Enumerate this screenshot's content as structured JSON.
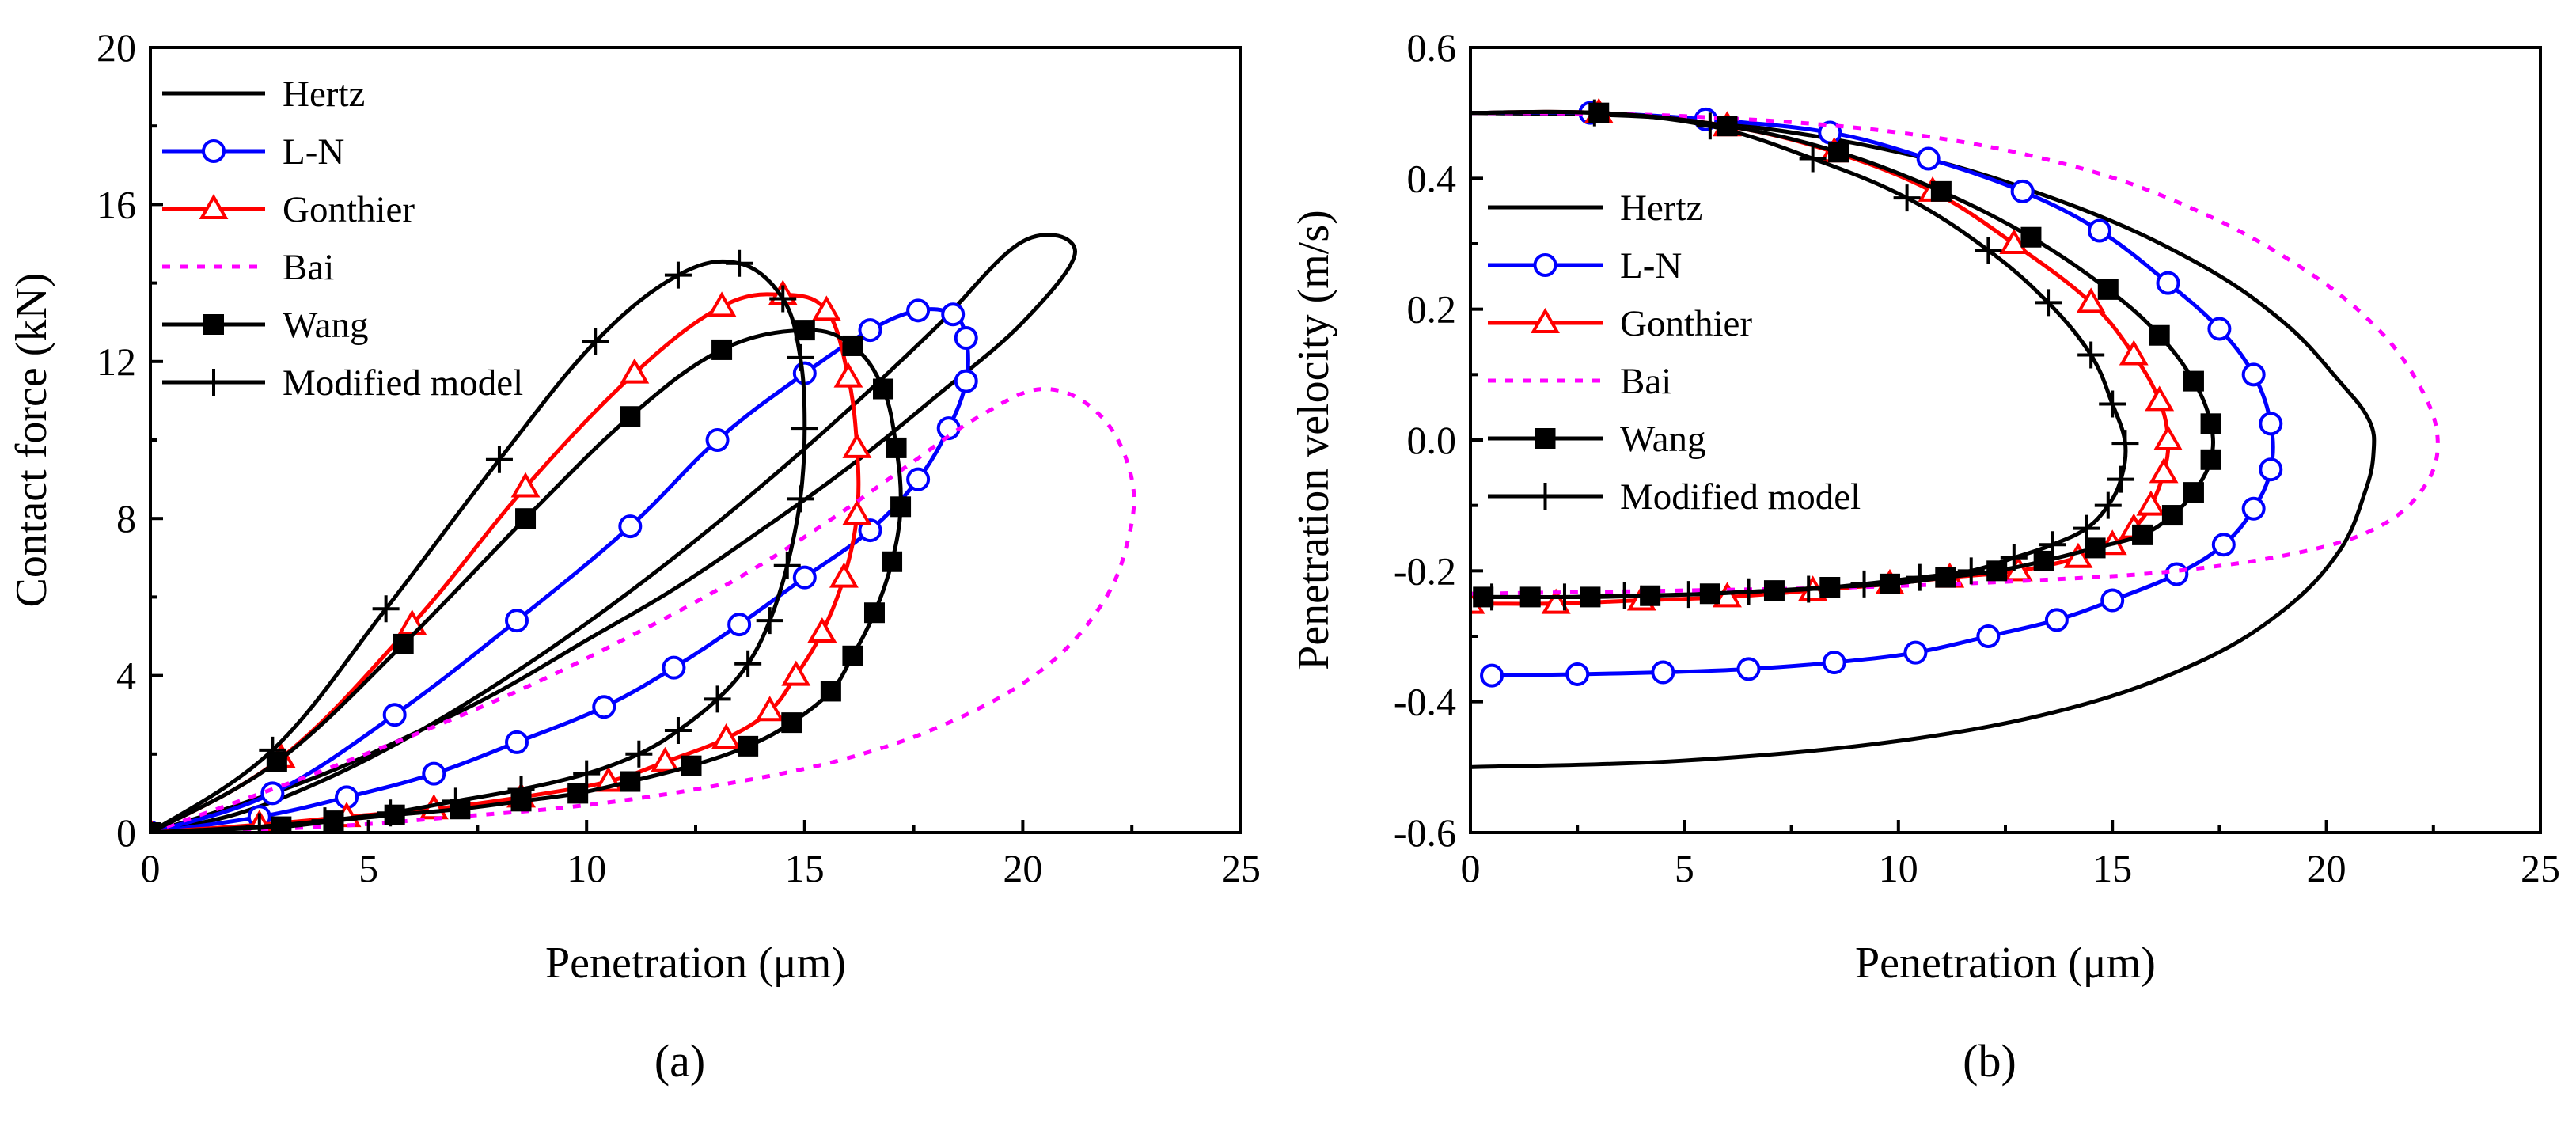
{
  "chart_data": [
    {
      "panel": "a",
      "type": "line",
      "panel_label": "(a)",
      "xlabel": "Penetration (μm)",
      "ylabel": "Contact force (kN)",
      "xlim": [
        0,
        25
      ],
      "ylim": [
        0,
        20
      ],
      "xticks": [
        0,
        5,
        10,
        15,
        20,
        25
      ],
      "yticks": [
        0,
        4,
        8,
        12,
        16,
        20
      ],
      "legend_position": "top-left",
      "series": [
        {
          "name": "Hertz",
          "color": "#000000",
          "dash": "",
          "marker": "none",
          "x": [
            0,
            2,
            4,
            6,
            8,
            10,
            12,
            14,
            16,
            18,
            20,
            21.2,
            20,
            18,
            16,
            14,
            12,
            10,
            8,
            6,
            4,
            2,
            0
          ],
          "y": [
            0,
            0.48,
            1.35,
            2.48,
            3.82,
            5.33,
            7.0,
            8.82,
            10.77,
            12.86,
            15.06,
            14.8,
            13.0,
            11.1,
            9.3,
            7.7,
            6.2,
            4.9,
            3.6,
            2.5,
            1.5,
            0.7,
            0
          ]
        },
        {
          "name": "L-N",
          "color": "#0000ff",
          "dash": "",
          "marker": "circle",
          "x": [
            0,
            2.8,
            5.6,
            8.4,
            11,
            13,
            15,
            16.5,
            17.6,
            18.4,
            18.7,
            18.7,
            18.3,
            17.6,
            16.5,
            15,
            13.5,
            12,
            10.4,
            8.4,
            6.5,
            4.5,
            2.5,
            0
          ],
          "y": [
            0,
            1.0,
            3.0,
            5.4,
            7.8,
            10.0,
            11.7,
            12.8,
            13.3,
            13.2,
            12.6,
            11.5,
            10.3,
            9.0,
            7.7,
            6.5,
            5.3,
            4.2,
            3.2,
            2.3,
            1.5,
            0.9,
            0.4,
            0
          ]
        },
        {
          "name": "Gonthier",
          "color": "#ff0000",
          "dash": "",
          "marker": "triangle",
          "x": [
            0,
            3,
            6,
            8.6,
            11.1,
            13.1,
            14.5,
            15.5,
            16.0,
            16.2,
            16.2,
            15.9,
            15.4,
            14.8,
            14.2,
            13.2,
            11.8,
            10.5,
            8.5,
            6.5,
            4.5,
            2.5,
            0
          ],
          "y": [
            0,
            1.9,
            5.3,
            8.8,
            11.7,
            13.4,
            13.7,
            13.3,
            11.6,
            9.8,
            8.1,
            6.5,
            5.1,
            4.0,
            3.1,
            2.4,
            1.8,
            1.3,
            0.9,
            0.6,
            0.4,
            0.2,
            0
          ]
        },
        {
          "name": "Bai",
          "color": "#ff00ff",
          "dash": "10,12",
          "marker": "none",
          "x": [
            0,
            4,
            8,
            11,
            13.5,
            15.5,
            17.3,
            19,
            20.5,
            21.8,
            22.5,
            22.4,
            21.8,
            20.5,
            18.5,
            16,
            13,
            10,
            7,
            4,
            0
          ],
          "y": [
            0,
            1.6,
            3.4,
            5.0,
            6.5,
            7.9,
            9.3,
            10.6,
            11.3,
            10.6,
            9.0,
            7.4,
            5.8,
            4.2,
            2.9,
            1.9,
            1.2,
            0.7,
            0.4,
            0.15,
            0
          ]
        },
        {
          "name": "Wang",
          "color": "#000000",
          "dash": "",
          "marker": "square",
          "x": [
            0,
            2.9,
            5.8,
            8.6,
            11.0,
            13.1,
            15.0,
            16.1,
            16.8,
            17.1,
            17.2,
            17.0,
            16.6,
            16.1,
            15.6,
            14.7,
            13.7,
            12.4,
            11.0,
            9.8,
            8.5,
            7.1,
            5.6,
            4.2,
            3,
            0
          ],
          "y": [
            0,
            1.8,
            4.8,
            8.0,
            10.6,
            12.3,
            12.8,
            12.4,
            11.3,
            9.8,
            8.3,
            6.9,
            5.6,
            4.5,
            3.6,
            2.8,
            2.2,
            1.7,
            1.3,
            1.0,
            0.8,
            0.6,
            0.45,
            0.3,
            0.15,
            0
          ]
        },
        {
          "name": "Modified model",
          "color": "#000000",
          "dash": "",
          "marker": "plus",
          "x": [
            0,
            2.8,
            5.4,
            8.0,
            10.2,
            12.1,
            13.5,
            14.5,
            14.9,
            15.0,
            14.9,
            14.6,
            14.2,
            13.7,
            13.0,
            12.1,
            11.2,
            10.0,
            8.5,
            7.0,
            5.5,
            4.0,
            2.5,
            0
          ],
          "y": [
            0,
            2.1,
            5.7,
            9.5,
            12.5,
            14.2,
            14.5,
            13.6,
            12.1,
            10.3,
            8.5,
            6.8,
            5.4,
            4.3,
            3.4,
            2.6,
            2.0,
            1.5,
            1.1,
            0.8,
            0.5,
            0.3,
            0.15,
            0
          ]
        }
      ]
    },
    {
      "panel": "b",
      "type": "line",
      "panel_label": "(b)",
      "xlabel": "Penetration (μm)",
      "ylabel": "Penetration velocity (m/s)",
      "xlim": [
        0,
        25
      ],
      "ylim": [
        -0.6,
        0.6
      ],
      "xticks": [
        0,
        5,
        10,
        15,
        20,
        25
      ],
      "yticks": [
        -0.6,
        -0.4,
        -0.2,
        0.0,
        0.2,
        0.4,
        0.6
      ],
      "legend_position": "left",
      "series": [
        {
          "name": "Hertz",
          "color": "#000000",
          "dash": "",
          "marker": "none",
          "x": [
            0,
            5,
            10,
            14,
            17,
            19,
            20.3,
            21.0,
            21.1,
            20.9,
            20.3,
            19,
            17,
            14,
            10,
            5,
            0
          ],
          "y": [
            0.5,
            0.49,
            0.44,
            0.36,
            0.27,
            0.18,
            0.09,
            0.03,
            -0.02,
            -0.08,
            -0.17,
            -0.26,
            -0.34,
            -0.41,
            -0.46,
            -0.49,
            -0.5
          ]
        },
        {
          "name": "L-N",
          "color": "#0000ff",
          "dash": "",
          "marker": "circle",
          "x": [
            0,
            2.8,
            5.5,
            8.4,
            10.7,
            12.9,
            14.7,
            16.3,
            17.5,
            18.3,
            18.7,
            18.7,
            18.3,
            17.6,
            16.5,
            15,
            13.7,
            12.1,
            10.4,
            8.5,
            6.5,
            4.5,
            2.5,
            0.5
          ],
          "y": [
            0.5,
            0.5,
            0.49,
            0.47,
            0.43,
            0.38,
            0.32,
            0.24,
            0.17,
            0.1,
            0.025,
            -0.045,
            -0.105,
            -0.16,
            -0.205,
            -0.245,
            -0.275,
            -0.3,
            -0.325,
            -0.34,
            -0.35,
            -0.355,
            -0.358,
            -0.36
          ]
        },
        {
          "name": "Gonthier",
          "color": "#ff0000",
          "dash": "",
          "marker": "triangle",
          "x": [
            0,
            3,
            6,
            8.5,
            10.8,
            12.7,
            14.5,
            15.5,
            16.1,
            16.3,
            16.2,
            15.9,
            15.5,
            15,
            14.2,
            12.8,
            11.2,
            9.8,
            8.0,
            6,
            4,
            2,
            0
          ],
          "y": [
            0.5,
            0.5,
            0.48,
            0.44,
            0.38,
            0.3,
            0.21,
            0.13,
            0.06,
            0.0,
            -0.05,
            -0.1,
            -0.135,
            -0.16,
            -0.18,
            -0.2,
            -0.21,
            -0.22,
            -0.23,
            -0.24,
            -0.245,
            -0.25,
            -0.25
          ]
        },
        {
          "name": "Bai",
          "color": "#ff00ff",
          "dash": "10,12",
          "marker": "none",
          "x": [
            0,
            5,
            10,
            14,
            17,
            19.5,
            21.2,
            22.2,
            22.6,
            22.3,
            21.3,
            19.5,
            16.5,
            13,
            9,
            5,
            0
          ],
          "y": [
            0.5,
            0.495,
            0.47,
            0.42,
            0.35,
            0.26,
            0.17,
            0.08,
            0.0,
            -0.07,
            -0.13,
            -0.17,
            -0.2,
            -0.215,
            -0.225,
            -0.23,
            -0.235
          ]
        },
        {
          "name": "Wang",
          "color": "#000000",
          "dash": "",
          "marker": "square",
          "x": [
            0,
            3,
            6,
            8.6,
            11.0,
            13.1,
            14.9,
            16.1,
            16.9,
            17.3,
            17.3,
            16.9,
            16.4,
            15.7,
            14.6,
            13.4,
            12.3,
            11.1,
            9.8,
            8.4,
            7.1,
            5.6,
            4.2,
            2.8,
            1.4,
            0.3
          ],
          "y": [
            0.5,
            0.5,
            0.48,
            0.44,
            0.38,
            0.31,
            0.23,
            0.16,
            0.09,
            0.025,
            -0.03,
            -0.08,
            -0.115,
            -0.145,
            -0.165,
            -0.185,
            -0.2,
            -0.21,
            -0.22,
            -0.225,
            -0.23,
            -0.235,
            -0.238,
            -0.24,
            -0.24,
            -0.24
          ]
        },
        {
          "name": "Modified model",
          "color": "#000000",
          "dash": "",
          "marker": "plus",
          "x": [
            0,
            2.9,
            5.6,
            8.0,
            10.2,
            12.1,
            13.5,
            14.5,
            15.0,
            15.3,
            15.2,
            14.9,
            14.4,
            13.6,
            12.7,
            11.7,
            10.5,
            9.2,
            7.9,
            6.5,
            5.1,
            3.6,
            2.2,
            0.5
          ],
          "y": [
            0.5,
            0.5,
            0.48,
            0.43,
            0.37,
            0.29,
            0.21,
            0.13,
            0.055,
            -0.005,
            -0.06,
            -0.1,
            -0.135,
            -0.16,
            -0.18,
            -0.2,
            -0.21,
            -0.22,
            -0.228,
            -0.232,
            -0.236,
            -0.238,
            -0.24,
            -0.24
          ]
        }
      ]
    }
  ]
}
